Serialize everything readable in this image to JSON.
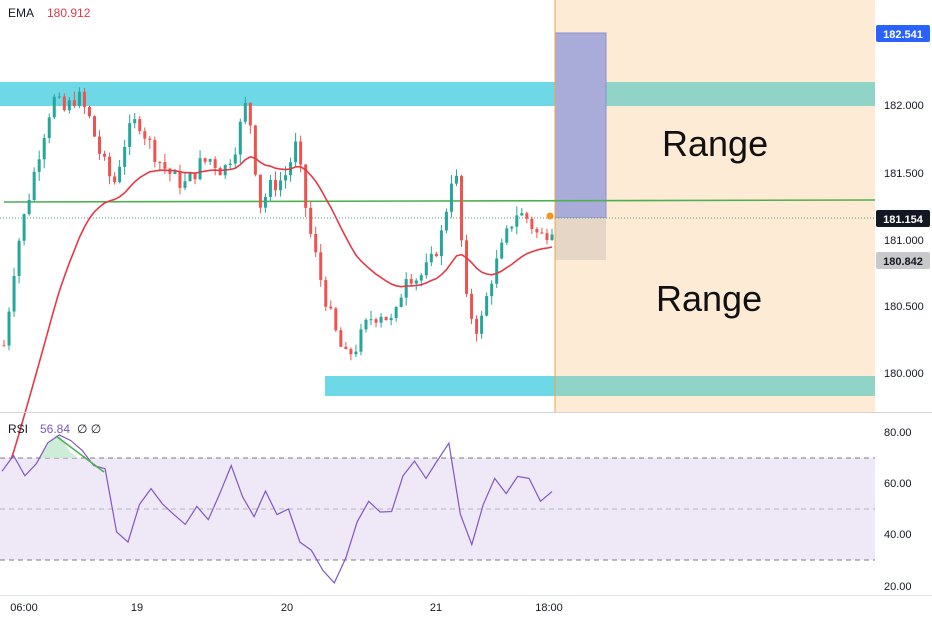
{
  "colors": {
    "up": "#26a69a",
    "down": "#ef5350",
    "ema": "#e53945",
    "support_zone": "#6fd8e6",
    "resistance_zone": "#6fd8e6",
    "green_line": "#4caf50",
    "position_profit": "#9fa3d6",
    "position_loss": "#e2d3c4",
    "future_zone": "#fdebd5",
    "rsi_line": "#7e57c2",
    "rsi_band": "#efe9f7",
    "last_price_label": "#131722",
    "top_label": "#2962ff"
  },
  "chart_data": [
    {
      "type": "candlestick",
      "title": "",
      "indicator": {
        "name": "EMA",
        "value_text": "180.912",
        "color": "#e53945"
      },
      "x_ticks": [
        "06:00",
        "19",
        "20",
        "21",
        "18:00"
      ],
      "y_ticks": [
        "182.000",
        "181.500",
        "181.000",
        "180.500",
        "180.000"
      ],
      "ylim": [
        179.7,
        182.75
      ],
      "price_labels": [
        {
          "name": "top",
          "text": "182.541",
          "value": 182.541
        },
        {
          "name": "last",
          "text": "181.154",
          "value": 181.154
        },
        {
          "name": "stop",
          "text": "180.842",
          "value": 180.842
        }
      ],
      "zones": [
        {
          "name": "resistance",
          "from": 182.0,
          "to": 182.17
        },
        {
          "name": "support",
          "from": 179.82,
          "to": 179.97
        }
      ],
      "horizontal_line": 181.28,
      "annotations": [
        "Range",
        "Range"
      ],
      "close_path": [
        180.2,
        180.9,
        181.3,
        181.7,
        182.05,
        181.95,
        182.08,
        181.9,
        181.6,
        181.4,
        181.75,
        181.9,
        181.7,
        181.55,
        181.45,
        181.4,
        181.55,
        181.6,
        181.5,
        181.7,
        182.05,
        181.25,
        181.4,
        181.45,
        181.7,
        181.1,
        180.7,
        180.35,
        180.1,
        180.2,
        180.4,
        180.45,
        180.35,
        180.75,
        180.7,
        180.8,
        181.05,
        181.6,
        180.5,
        180.3,
        180.7,
        180.95,
        181.2,
        181.15,
        181.0,
        181.1
      ]
    },
    {
      "type": "line",
      "indicator": "RSI",
      "value_text": "56.84",
      "extra": "∅ ∅",
      "y_ticks": [
        "80.00",
        "60.00",
        "40.00",
        "20.00"
      ],
      "ylim": [
        15,
        84
      ],
      "band": [
        30,
        70
      ],
      "midline": 50,
      "values": [
        65,
        70,
        64,
        68,
        75,
        80,
        77,
        72,
        68,
        66,
        40,
        38,
        52,
        57,
        53,
        48,
        43,
        52,
        46,
        55,
        68,
        55,
        46,
        58,
        48,
        49,
        38,
        34,
        25,
        22,
        31,
        44,
        54,
        49,
        48,
        64,
        69,
        61,
        70,
        76,
        47,
        37,
        52,
        61,
        57,
        63,
        61,
        54,
        57
      ]
    }
  ]
}
